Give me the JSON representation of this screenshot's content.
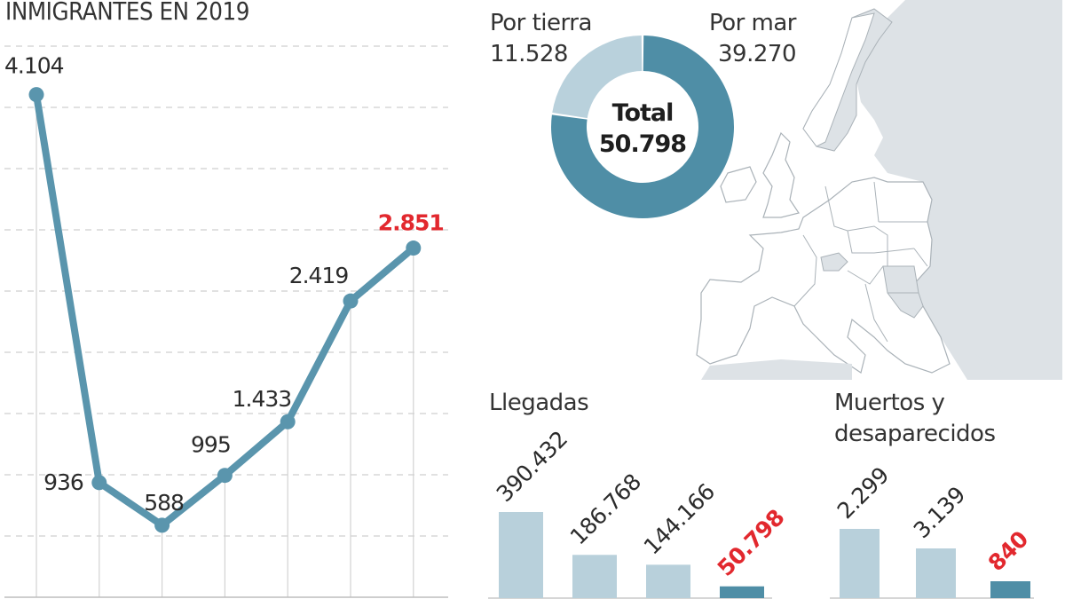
{
  "chart_data": [
    {
      "type": "line",
      "title": "INMIGRANTES EN 2019",
      "xlabel": "",
      "ylabel": "",
      "categories": [
        "",
        "",
        "",
        "",
        "",
        "",
        ""
      ],
      "values": [
        4104,
        936,
        588,
        995,
        1433,
        2419,
        2851
      ],
      "labels": [
        "4.104",
        "936",
        "588",
        "995",
        "1.433",
        "2.419",
        "2.851"
      ],
      "highlight_index": 6,
      "ylim": [
        0,
        4500
      ],
      "ytick_step": 500,
      "grid": true
    },
    {
      "type": "pie",
      "title": "",
      "center_label": "Total",
      "center_value": "50.798",
      "total": 50798,
      "slices": [
        {
          "name": "Por mar",
          "value": 39270,
          "label": "39.270"
        },
        {
          "name": "Por tierra",
          "value": 11528,
          "label": "11.528"
        }
      ]
    },
    {
      "type": "bar",
      "title": "Llegadas",
      "categories": [
        "",
        "",
        "",
        ""
      ],
      "values": [
        390432,
        186768,
        144166,
        50798
      ],
      "labels": [
        "390.432",
        "186.768",
        "144.166",
        "50.798"
      ],
      "highlight_index": 3
    },
    {
      "type": "bar",
      "title": "Muertos y desaparecidos",
      "title_lines": [
        "Muertos y",
        "desaparecidos"
      ],
      "categories": [
        "",
        "",
        ""
      ],
      "values": [
        2299,
        3139,
        840
      ],
      "labels": [
        "2.299",
        "3.139",
        "840"
      ],
      "highlight_index": 2
    }
  ],
  "colors": {
    "line": "#5a95ad",
    "grid": "#cfcfcf",
    "donut_main": "#4f8ea6",
    "donut_light": "#b9d1dc",
    "bar_light": "#b8d0db",
    "bar_highlight": "#4f8ea6",
    "highlight_text": "#e2282e",
    "map_land_other": "#dde2e6",
    "map_stroke": "#aab2b8"
  }
}
